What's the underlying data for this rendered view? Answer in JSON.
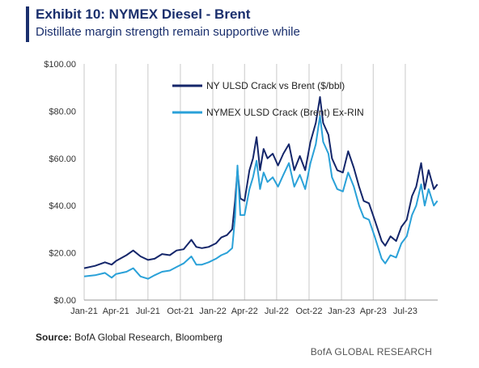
{
  "header": {
    "title": "Exhibit 10: NYMEX Diesel - Brent",
    "subtitle": "Distillate margin strength remain supportive while"
  },
  "footer": {
    "source_label": "Source:",
    "source_text": "BofA Global Research, Bloomberg",
    "brand": "BofA GLOBAL RESEARCH"
  },
  "colors": {
    "series_dark": "#14266a",
    "series_light": "#2aa1d8",
    "grid": "#c9c9c9",
    "axis_text": "#333333"
  },
  "chart_data": {
    "type": "line",
    "title": "",
    "xlabel": "",
    "ylabel": "",
    "ylim": [
      0,
      100
    ],
    "yticks": [
      0,
      20,
      40,
      60,
      80,
      100
    ],
    "ytick_labels": [
      "$0.00",
      "$20.00",
      "$40.00",
      "$60.00",
      "$80.00",
      "$100.00"
    ],
    "xlim": [
      "2021-01",
      "2023-10"
    ],
    "xticks": [
      "2021-01",
      "2021-04",
      "2021-07",
      "2021-10",
      "2022-01",
      "2022-04",
      "2022-07",
      "2022-10",
      "2023-01",
      "2023-04",
      "2023-07"
    ],
    "xtick_labels": [
      "Jan-21",
      "Apr-21",
      "Jul-21",
      "Oct-21",
      "Jan-22",
      "Apr-22",
      "Jul-22",
      "Oct-22",
      "Jan-23",
      "Apr-23",
      "Jul-23"
    ],
    "grid": "vertical",
    "legend_position": "top-center",
    "series": [
      {
        "name": "NY ULSD Crack vs Brent ($/bbl)",
        "color": "#14266a",
        "points": [
          [
            "2021-01-01",
            13.5
          ],
          [
            "2021-02-01",
            14.5
          ],
          [
            "2021-03-01",
            16.0
          ],
          [
            "2021-03-20",
            15.0
          ],
          [
            "2021-04-01",
            16.5
          ],
          [
            "2021-05-01",
            19.0
          ],
          [
            "2021-05-20",
            21.0
          ],
          [
            "2021-06-10",
            18.5
          ],
          [
            "2021-07-01",
            17.0
          ],
          [
            "2021-07-20",
            17.5
          ],
          [
            "2021-08-10",
            19.5
          ],
          [
            "2021-09-01",
            19.0
          ],
          [
            "2021-09-20",
            21.0
          ],
          [
            "2021-10-10",
            21.5
          ],
          [
            "2021-11-01",
            25.5
          ],
          [
            "2021-11-15",
            22.5
          ],
          [
            "2021-12-01",
            22.0
          ],
          [
            "2021-12-20",
            22.5
          ],
          [
            "2022-01-10",
            24.0
          ],
          [
            "2022-01-25",
            26.5
          ],
          [
            "2022-02-10",
            27.5
          ],
          [
            "2022-02-25",
            30.0
          ],
          [
            "2022-03-05",
            42.0
          ],
          [
            "2022-03-12",
            55.0
          ],
          [
            "2022-03-20",
            43.0
          ],
          [
            "2022-04-01",
            42.0
          ],
          [
            "2022-04-15",
            55.0
          ],
          [
            "2022-04-25",
            60.0
          ],
          [
            "2022-05-05",
            69.0
          ],
          [
            "2022-05-15",
            55.0
          ],
          [
            "2022-05-25",
            64.0
          ],
          [
            "2022-06-05",
            60.0
          ],
          [
            "2022-06-20",
            62.0
          ],
          [
            "2022-07-05",
            57.0
          ],
          [
            "2022-07-20",
            62.0
          ],
          [
            "2022-08-05",
            66.0
          ],
          [
            "2022-08-20",
            55.0
          ],
          [
            "2022-09-05",
            61.0
          ],
          [
            "2022-09-20",
            55.0
          ],
          [
            "2022-10-05",
            67.0
          ],
          [
            "2022-10-20",
            75.0
          ],
          [
            "2022-11-01",
            86.0
          ],
          [
            "2022-11-10",
            75.0
          ],
          [
            "2022-11-25",
            70.0
          ],
          [
            "2022-12-05",
            60.0
          ],
          [
            "2022-12-20",
            55.0
          ],
          [
            "2023-01-05",
            54.0
          ],
          [
            "2023-01-20",
            63.0
          ],
          [
            "2023-02-05",
            56.0
          ],
          [
            "2023-02-20",
            48.0
          ],
          [
            "2023-03-05",
            42.0
          ],
          [
            "2023-03-20",
            41.0
          ],
          [
            "2023-04-05",
            34.0
          ],
          [
            "2023-04-25",
            25.0
          ],
          [
            "2023-05-05",
            23.0
          ],
          [
            "2023-05-20",
            27.0
          ],
          [
            "2023-06-05",
            25.0
          ],
          [
            "2023-06-20",
            31.0
          ],
          [
            "2023-07-05",
            34.0
          ],
          [
            "2023-07-20",
            44.0
          ],
          [
            "2023-08-01",
            48.0
          ],
          [
            "2023-08-15",
            58.0
          ],
          [
            "2023-08-25",
            47.0
          ],
          [
            "2023-09-05",
            55.0
          ],
          [
            "2023-09-20",
            47.0
          ],
          [
            "2023-09-30",
            49.0
          ]
        ]
      },
      {
        "name": "NYMEX ULSD Crack (Brent) Ex-RIN",
        "color": "#2aa1d8",
        "points": [
          [
            "2021-01-01",
            10.0
          ],
          [
            "2021-02-01",
            10.5
          ],
          [
            "2021-03-01",
            11.5
          ],
          [
            "2021-03-20",
            9.5
          ],
          [
            "2021-04-01",
            11.0
          ],
          [
            "2021-05-01",
            12.0
          ],
          [
            "2021-05-20",
            13.5
          ],
          [
            "2021-06-10",
            10.0
          ],
          [
            "2021-07-01",
            9.0
          ],
          [
            "2021-07-20",
            10.5
          ],
          [
            "2021-08-10",
            12.0
          ],
          [
            "2021-09-01",
            12.5
          ],
          [
            "2021-09-20",
            14.0
          ],
          [
            "2021-10-10",
            15.5
          ],
          [
            "2021-11-01",
            18.5
          ],
          [
            "2021-11-15",
            15.0
          ],
          [
            "2021-12-01",
            15.0
          ],
          [
            "2021-12-20",
            16.0
          ],
          [
            "2022-01-10",
            17.5
          ],
          [
            "2022-01-25",
            19.0
          ],
          [
            "2022-02-10",
            20.0
          ],
          [
            "2022-02-25",
            22.0
          ],
          [
            "2022-03-05",
            35.0
          ],
          [
            "2022-03-12",
            57.0
          ],
          [
            "2022-03-20",
            36.0
          ],
          [
            "2022-04-01",
            36.0
          ],
          [
            "2022-04-15",
            47.0
          ],
          [
            "2022-04-25",
            52.0
          ],
          [
            "2022-05-05",
            59.0
          ],
          [
            "2022-05-15",
            47.0
          ],
          [
            "2022-05-25",
            54.0
          ],
          [
            "2022-06-05",
            50.0
          ],
          [
            "2022-06-20",
            52.0
          ],
          [
            "2022-07-05",
            48.0
          ],
          [
            "2022-07-20",
            53.0
          ],
          [
            "2022-08-05",
            58.0
          ],
          [
            "2022-08-20",
            48.0
          ],
          [
            "2022-09-05",
            53.0
          ],
          [
            "2022-09-20",
            47.0
          ],
          [
            "2022-10-05",
            58.0
          ],
          [
            "2022-10-20",
            66.0
          ],
          [
            "2022-11-01",
            78.0
          ],
          [
            "2022-11-10",
            67.0
          ],
          [
            "2022-11-25",
            62.0
          ],
          [
            "2022-12-05",
            52.0
          ],
          [
            "2022-12-20",
            47.0
          ],
          [
            "2023-01-05",
            46.0
          ],
          [
            "2023-01-20",
            54.0
          ],
          [
            "2023-02-05",
            48.0
          ],
          [
            "2023-02-20",
            40.0
          ],
          [
            "2023-03-05",
            35.0
          ],
          [
            "2023-03-20",
            34.0
          ],
          [
            "2023-04-05",
            27.0
          ],
          [
            "2023-04-25",
            17.5
          ],
          [
            "2023-05-05",
            15.5
          ],
          [
            "2023-05-20",
            19.0
          ],
          [
            "2023-06-05",
            18.0
          ],
          [
            "2023-06-20",
            24.0
          ],
          [
            "2023-07-05",
            27.0
          ],
          [
            "2023-07-20",
            36.0
          ],
          [
            "2023-08-01",
            40.0
          ],
          [
            "2023-08-15",
            49.0
          ],
          [
            "2023-08-25",
            40.0
          ],
          [
            "2023-09-05",
            47.0
          ],
          [
            "2023-09-20",
            40.0
          ],
          [
            "2023-09-30",
            42.0
          ]
        ]
      }
    ]
  }
}
